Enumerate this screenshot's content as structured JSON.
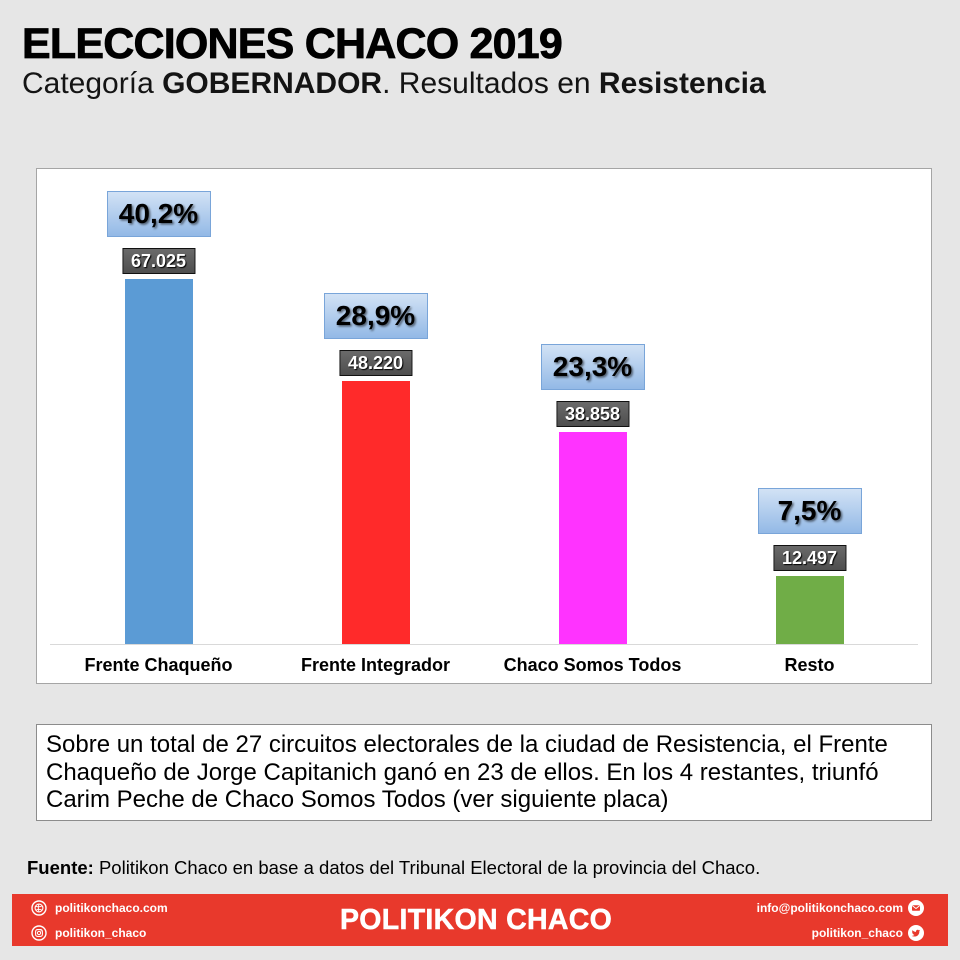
{
  "title": "ELECCIONES CHACO 2019",
  "subtitle": {
    "prefix": "Categoría ",
    "category": "GOBERNADOR",
    "middle": ". Resultados en ",
    "place": "Resistencia"
  },
  "chart_data": {
    "type": "bar",
    "categories": [
      "Frente Chaqueño",
      "Frente Integrador",
      "Chaco Somos Todos",
      "Resto"
    ],
    "values": [
      67025,
      48220,
      38858,
      12497
    ],
    "value_labels": [
      "67.025",
      "48.220",
      "38.858",
      "12.497"
    ],
    "percent_labels": [
      "40,2%",
      "28,9%",
      "23,3%",
      "7,5%"
    ],
    "colors": [
      "#5b9bd5",
      "#ff2a2a",
      "#ff33ff",
      "#70ad47"
    ],
    "ylim": [
      0,
      80000
    ],
    "grid": false
  },
  "note": "Sobre un total de 27 circuitos electorales de la ciudad de Resistencia, el Frente Chaqueño de Jorge Capitanich ganó en 23 de ellos. En los 4 restantes, triunfó Carim Peche de Chaco Somos Todos (ver siguiente placa)",
  "source": {
    "label": "Fuente:",
    "text": "Politikon Chaco en base a datos del Tribunal Electoral de la provincia del Chaco."
  },
  "footer": {
    "color": "#e8392c",
    "left": [
      {
        "icon": "globe-icon",
        "text": "politikonchaco.com"
      },
      {
        "icon": "instagram-icon",
        "text": "politikon_chaco"
      }
    ],
    "brand": "POLITIKON CHACO",
    "right": [
      {
        "text": "info@politikonchaco.com",
        "icon": "mail-icon"
      },
      {
        "text": "politikon_chaco",
        "icon": "twitter-icon"
      }
    ]
  }
}
